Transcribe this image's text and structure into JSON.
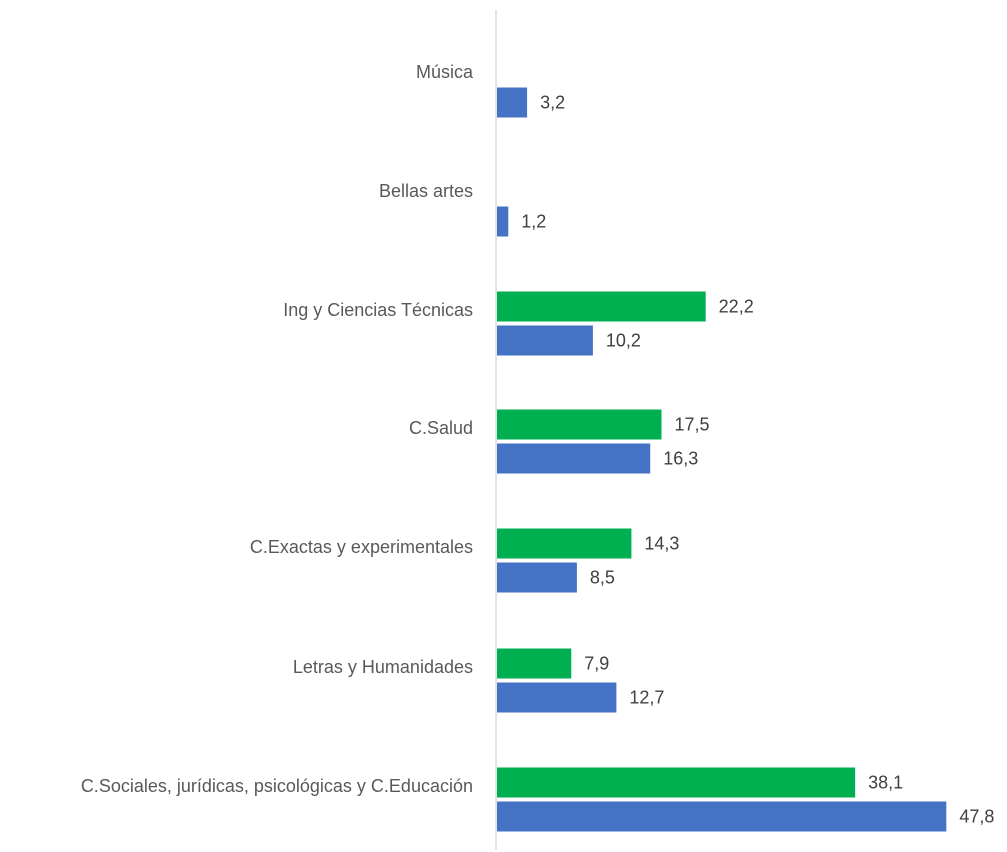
{
  "chart_data": {
    "type": "bar",
    "orientation": "horizontal",
    "categories": [
      "Música",
      "Bellas artes",
      "Ing y Ciencias Técnicas",
      "C.Salud",
      "C.Exactas y experimentales",
      "Letras y Humanidades",
      "C.Sociales, jurídicas, psicológicas y C.Educación"
    ],
    "series": [
      {
        "color": "#00B050",
        "values": [
          null,
          null,
          22.2,
          17.5,
          14.3,
          7.9,
          38.1
        ]
      },
      {
        "color": "#4472C4",
        "values": [
          3.2,
          1.2,
          10.2,
          16.3,
          8.5,
          12.7,
          47.8
        ]
      }
    ],
    "value_labels": {
      "series_0": [
        "",
        "",
        "22,2",
        "17,5",
        "14,3",
        "7,9",
        "38,1"
      ],
      "series_1": [
        "3,2",
        "1,2",
        "10,2",
        "16,3",
        "8,5",
        "12,7",
        "47,8"
      ]
    },
    "xlim": [
      0,
      48
    ],
    "grid": false,
    "legend": "none",
    "title": "",
    "xlabel": "",
    "ylabel": ""
  }
}
